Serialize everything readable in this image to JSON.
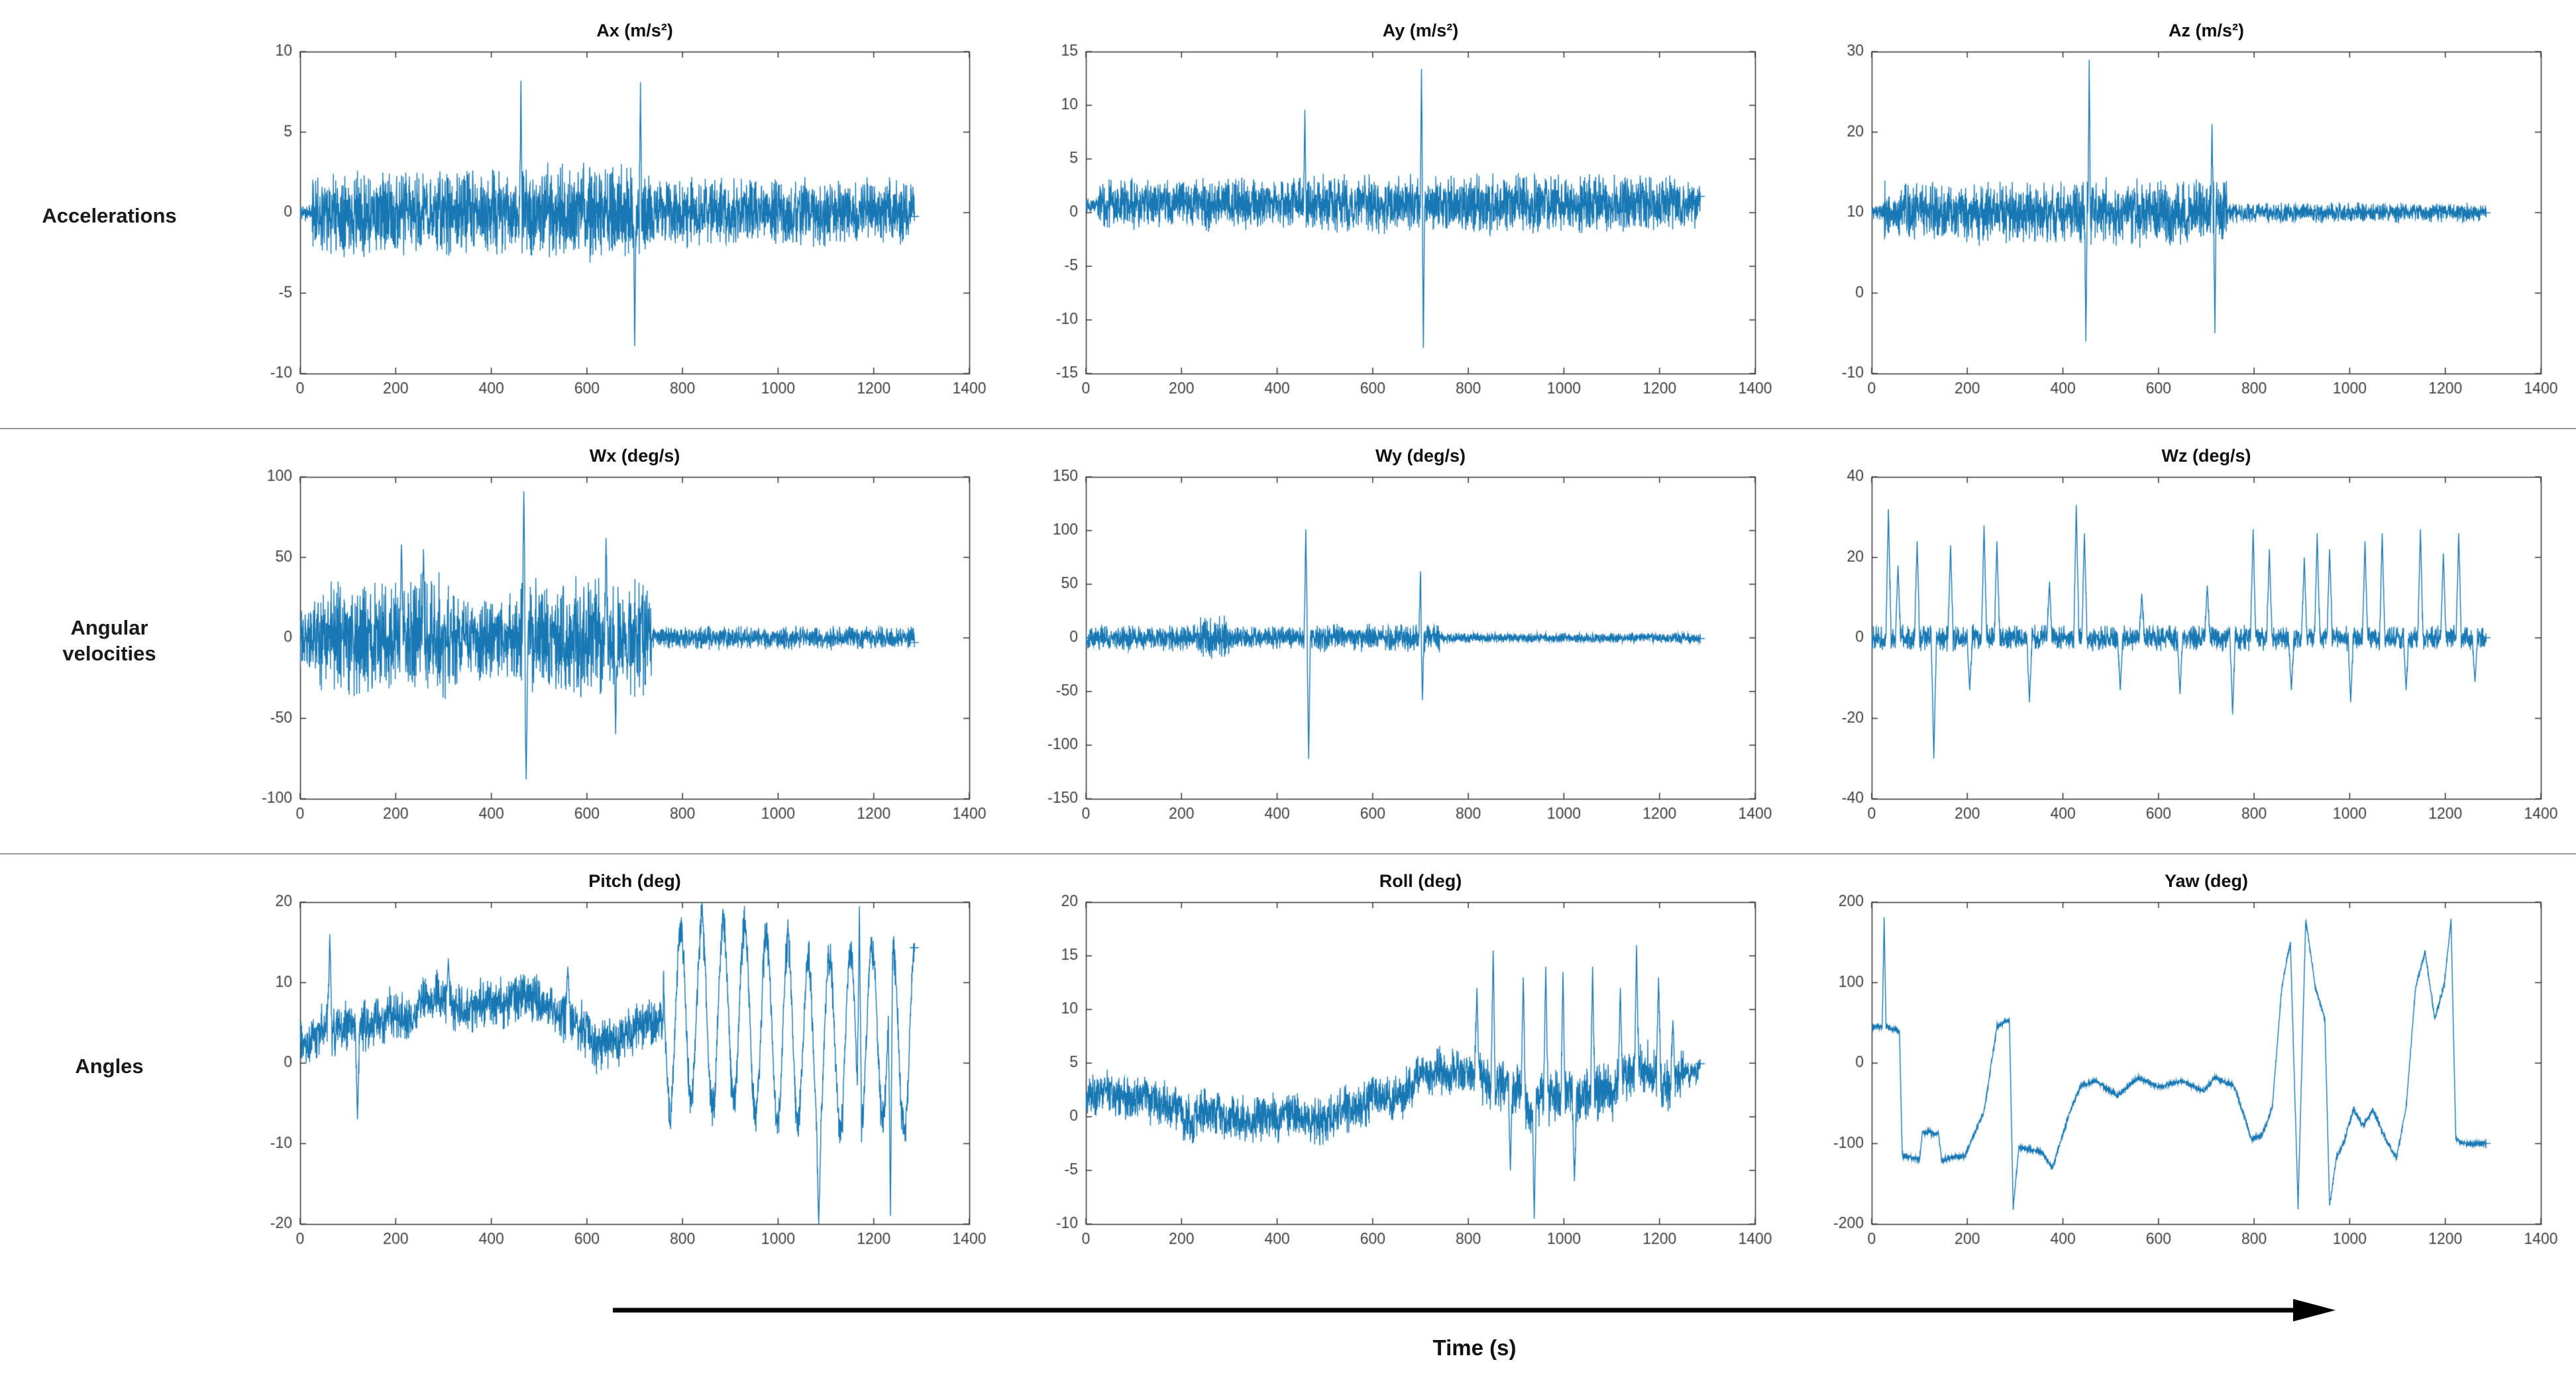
{
  "rows": [
    {
      "label": "Accelerations"
    },
    {
      "label": "Angular\nvelocities"
    },
    {
      "label": "Angles"
    }
  ],
  "footer": {
    "time_label": "Time (s)"
  },
  "style": {
    "line_color": "#1878b4",
    "axis_color": "#333333",
    "tick_label_color": "#404040",
    "title_color": "#111111",
    "separator_color": "#9a9a9a",
    "arrow_color": "#000000"
  },
  "chart_data": [
    {
      "type": "line",
      "title": "Ax (m/s²)",
      "seed": 11,
      "kind": "noise",
      "mean": 0,
      "xlim": [
        0,
        1400
      ],
      "xticks": [
        0,
        200,
        400,
        600,
        800,
        1000,
        1200,
        1400
      ],
      "t_end": 1285,
      "ylim": [
        -10,
        10
      ],
      "yticks": [
        -10,
        -5,
        0,
        5,
        10
      ],
      "envelope": [
        {
          "t0": 0,
          "t1": 25,
          "amp": 0.6
        },
        {
          "t0": 25,
          "t1": 460,
          "amp": 2.9
        },
        {
          "t0": 460,
          "t1": 735,
          "amp": 3.3
        },
        {
          "t0": 735,
          "t1": 1285,
          "amp": 2.3
        }
      ],
      "spikes": [
        {
          "t": 462,
          "v": 8.2
        },
        {
          "t": 700,
          "v": -8.3
        },
        {
          "t": 712,
          "v": 8.1
        }
      ],
      "spike_w": 2
    },
    {
      "type": "line",
      "title": "Ay (m/s²)",
      "seed": 22,
      "kind": "noise",
      "mean": 0.8,
      "xlim": [
        0,
        1400
      ],
      "xticks": [
        0,
        200,
        400,
        600,
        800,
        1000,
        1200,
        1400
      ],
      "t_end": 1285,
      "ylim": [
        -15,
        15
      ],
      "yticks": [
        -15,
        -10,
        -5,
        0,
        5,
        10,
        15
      ],
      "envelope": [
        {
          "t0": 0,
          "t1": 25,
          "amp": 0.8
        },
        {
          "t0": 25,
          "t1": 460,
          "amp": 2.6
        },
        {
          "t0": 460,
          "t1": 740,
          "amp": 3.0
        },
        {
          "t0": 740,
          "t1": 1285,
          "amp": 3.0
        }
      ],
      "spikes": [
        {
          "t": 458,
          "v": 9.6
        },
        {
          "t": 702,
          "v": 13.4
        },
        {
          "t": 706,
          "v": -12.6
        }
      ],
      "spike_w": 2
    },
    {
      "type": "line",
      "title": "Az (m/s²)",
      "seed": 33,
      "kind": "noise",
      "mean": 10,
      "xlim": [
        0,
        1400
      ],
      "xticks": [
        0,
        200,
        400,
        600,
        800,
        1000,
        1200,
        1400
      ],
      "t_end": 1285,
      "ylim": [
        -10,
        30
      ],
      "yticks": [
        -10,
        0,
        10,
        20,
        30
      ],
      "envelope": [
        {
          "t0": 0,
          "t1": 25,
          "amp": 1.0
        },
        {
          "t0": 25,
          "t1": 455,
          "amp": 4.2
        },
        {
          "t0": 455,
          "t1": 745,
          "amp": 4.6
        },
        {
          "t0": 745,
          "t1": 1285,
          "amp": 1.4
        }
      ],
      "spikes": [
        {
          "t": 448,
          "v": -6
        },
        {
          "t": 455,
          "v": 29
        },
        {
          "t": 712,
          "v": 21
        },
        {
          "t": 718,
          "v": -5
        }
      ],
      "spike_w": 2
    },
    {
      "type": "line",
      "title": "Wx (deg/s)",
      "seed": 44,
      "kind": "noise",
      "mean": 0,
      "xlim": [
        0,
        1400
      ],
      "xticks": [
        0,
        200,
        400,
        600,
        800,
        1000,
        1200,
        1400
      ],
      "t_end": 1285,
      "ylim": [
        -100,
        100
      ],
      "yticks": [
        -100,
        -50,
        0,
        50,
        100
      ],
      "envelope": [
        {
          "t0": 0,
          "t1": 30,
          "amp": 25
        },
        {
          "t0": 30,
          "t1": 240,
          "amp": 38
        },
        {
          "t0": 240,
          "t1": 330,
          "amp": 42
        },
        {
          "t0": 330,
          "t1": 460,
          "amp": 30
        },
        {
          "t0": 460,
          "t1": 560,
          "amp": 38
        },
        {
          "t0": 560,
          "t1": 735,
          "amp": 40
        },
        {
          "t0": 735,
          "t1": 1285,
          "amp": 8
        }
      ],
      "spikes": [
        {
          "t": 212,
          "v": 58
        },
        {
          "t": 258,
          "v": 55
        },
        {
          "t": 468,
          "v": 91
        },
        {
          "t": 473,
          "v": -88
        },
        {
          "t": 640,
          "v": 62
        },
        {
          "t": 660,
          "v": -60
        }
      ],
      "spike_w": 3
    },
    {
      "type": "line",
      "title": "Wy (deg/s)",
      "seed": 55,
      "kind": "noise",
      "mean": 0,
      "xlim": [
        0,
        1400
      ],
      "xticks": [
        0,
        200,
        400,
        600,
        800,
        1000,
        1200,
        1400
      ],
      "t_end": 1285,
      "ylim": [
        -150,
        150
      ],
      "yticks": [
        -150,
        -100,
        -50,
        0,
        50,
        100,
        150
      ],
      "envelope": [
        {
          "t0": 0,
          "t1": 240,
          "amp": 13
        },
        {
          "t0": 240,
          "t1": 300,
          "amp": 22
        },
        {
          "t0": 300,
          "t1": 460,
          "amp": 12
        },
        {
          "t0": 460,
          "t1": 740,
          "amp": 14
        },
        {
          "t0": 740,
          "t1": 1285,
          "amp": 5
        }
      ],
      "spikes": [
        {
          "t": 460,
          "v": 101
        },
        {
          "t": 466,
          "v": -113
        },
        {
          "t": 700,
          "v": 62
        },
        {
          "t": 704,
          "v": -58
        }
      ],
      "spike_w": 3
    },
    {
      "type": "line",
      "title": "Wz (deg/s)",
      "seed": 66,
      "kind": "noise",
      "mean": 0,
      "xlim": [
        0,
        1400
      ],
      "xticks": [
        0,
        200,
        400,
        600,
        800,
        1000,
        1200,
        1400
      ],
      "t_end": 1285,
      "ylim": [
        -40,
        40
      ],
      "yticks": [
        -40,
        -20,
        0,
        20,
        40
      ],
      "envelope": [
        {
          "t0": 0,
          "t1": 1285,
          "amp": 3.5
        }
      ],
      "spikes": [
        {
          "t": 35,
          "v": 32
        },
        {
          "t": 55,
          "v": 18
        },
        {
          "t": 95,
          "v": 24
        },
        {
          "t": 130,
          "v": -30
        },
        {
          "t": 165,
          "v": 23
        },
        {
          "t": 205,
          "v": -13
        },
        {
          "t": 235,
          "v": 28
        },
        {
          "t": 262,
          "v": 24
        },
        {
          "t": 330,
          "v": -16
        },
        {
          "t": 372,
          "v": 14
        },
        {
          "t": 428,
          "v": 33
        },
        {
          "t": 445,
          "v": 26
        },
        {
          "t": 520,
          "v": -13
        },
        {
          "t": 565,
          "v": 11
        },
        {
          "t": 645,
          "v": -14
        },
        {
          "t": 702,
          "v": 13
        },
        {
          "t": 755,
          "v": -19
        },
        {
          "t": 798,
          "v": 27
        },
        {
          "t": 832,
          "v": 22
        },
        {
          "t": 878,
          "v": -13
        },
        {
          "t": 905,
          "v": 20
        },
        {
          "t": 932,
          "v": 26
        },
        {
          "t": 958,
          "v": 22
        },
        {
          "t": 1002,
          "v": -16
        },
        {
          "t": 1032,
          "v": 24
        },
        {
          "t": 1068,
          "v": 26
        },
        {
          "t": 1118,
          "v": -13
        },
        {
          "t": 1148,
          "v": 27
        },
        {
          "t": 1196,
          "v": 21
        },
        {
          "t": 1228,
          "v": 26
        },
        {
          "t": 1262,
          "v": -11
        }
      ],
      "spike_w": 5
    },
    {
      "type": "line",
      "title": "Pitch (deg)",
      "seed": 77,
      "kind": "wander",
      "mean": 3.5,
      "slow_step": 0.5,
      "slow_min": -5,
      "slow_max": 5,
      "osc_speed": 0.14,
      "xlim": [
        0,
        1400
      ],
      "xticks": [
        0,
        200,
        400,
        600,
        800,
        1000,
        1200,
        1400
      ],
      "t_end": 1285,
      "ylim": [
        -20,
        20
      ],
      "yticks": [
        -20,
        -10,
        0,
        10,
        20
      ],
      "envelope": [
        {
          "t0": 0,
          "t1": 760,
          "amp": 3.4
        },
        {
          "t0": 760,
          "t1": 1285,
          "amp": 13,
          "mode": "osc"
        }
      ],
      "spikes": [
        {
          "t": 62,
          "v": 16
        },
        {
          "t": 120,
          "v": -7
        },
        {
          "t": 310,
          "v": 13
        },
        {
          "t": 560,
          "v": 12
        },
        {
          "t": 1085,
          "v": -20
        },
        {
          "t": 1170,
          "v": 19.5
        },
        {
          "t": 1235,
          "v": -19
        }
      ],
      "spike_w": 4
    },
    {
      "type": "line",
      "title": "Roll (deg)",
      "seed": 88,
      "kind": "wander",
      "mean": 2,
      "slow_step": 0.35,
      "slow_min": -2.5,
      "slow_max": 3,
      "xlim": [
        0,
        1400
      ],
      "xticks": [
        0,
        200,
        400,
        600,
        800,
        1000,
        1200,
        1400
      ],
      "t_end": 1285,
      "ylim": [
        -10,
        20
      ],
      "yticks": [
        -10,
        -5,
        0,
        5,
        10,
        15,
        20
      ],
      "envelope": [
        {
          "t0": 0,
          "t1": 800,
          "amp": 2.4
        },
        {
          "t0": 800,
          "t1": 1250,
          "amp": 3.0
        },
        {
          "t0": 1250,
          "t1": 1285,
          "amp": 1.2
        }
      ],
      "spikes": [
        {
          "t": 818,
          "v": 12
        },
        {
          "t": 852,
          "v": 15.5
        },
        {
          "t": 888,
          "v": -5
        },
        {
          "t": 915,
          "v": 13
        },
        {
          "t": 938,
          "v": -9.5
        },
        {
          "t": 962,
          "v": 14
        },
        {
          "t": 998,
          "v": 13.5
        },
        {
          "t": 1022,
          "v": -6
        },
        {
          "t": 1060,
          "v": 14
        },
        {
          "t": 1118,
          "v": 12
        },
        {
          "t": 1152,
          "v": 16
        },
        {
          "t": 1198,
          "v": 13
        },
        {
          "t": 1228,
          "v": 9
        }
      ],
      "spike_w": 4
    },
    {
      "type": "line",
      "title": "Yaw (deg)",
      "seed": 99,
      "kind": "steps",
      "noise": 4,
      "xlim": [
        0,
        1400
      ],
      "xticks": [
        0,
        200,
        400,
        600,
        800,
        1000,
        1200,
        1400
      ],
      "t_end": 1285,
      "ylim": [
        -200,
        200
      ],
      "yticks": [
        -200,
        -100,
        0,
        100,
        200
      ],
      "waypoints": [
        [
          0,
          45
        ],
        [
          22,
          45
        ],
        [
          26,
          180
        ],
        [
          30,
          45
        ],
        [
          58,
          40
        ],
        [
          64,
          -115
        ],
        [
          100,
          -120
        ],
        [
          106,
          -85
        ],
        [
          140,
          -88
        ],
        [
          146,
          -120
        ],
        [
          195,
          -115
        ],
        [
          235,
          -60
        ],
        [
          262,
          45
        ],
        [
          288,
          55
        ],
        [
          296,
          -180
        ],
        [
          308,
          -105
        ],
        [
          355,
          -110
        ],
        [
          378,
          -130
        ],
        [
          415,
          -60
        ],
        [
          438,
          -28
        ],
        [
          468,
          -22
        ],
        [
          515,
          -40
        ],
        [
          558,
          -18
        ],
        [
          600,
          -30
        ],
        [
          648,
          -22
        ],
        [
          695,
          -35
        ],
        [
          718,
          -18
        ],
        [
          758,
          -28
        ],
        [
          795,
          -95
        ],
        [
          818,
          -88
        ],
        [
          838,
          -55
        ],
        [
          858,
          95
        ],
        [
          876,
          150
        ],
        [
          892,
          -178
        ],
        [
          908,
          178
        ],
        [
          928,
          95
        ],
        [
          948,
          55
        ],
        [
          958,
          -178
        ],
        [
          972,
          -118
        ],
        [
          988,
          -98
        ],
        [
          1008,
          -58
        ],
        [
          1028,
          -78
        ],
        [
          1048,
          -58
        ],
        [
          1078,
          -98
        ],
        [
          1098,
          -118
        ],
        [
          1118,
          -55
        ],
        [
          1138,
          95
        ],
        [
          1158,
          138
        ],
        [
          1178,
          55
        ],
        [
          1198,
          98
        ],
        [
          1212,
          178
        ],
        [
          1222,
          -95
        ],
        [
          1240,
          -100
        ],
        [
          1285,
          -100
        ]
      ]
    }
  ]
}
